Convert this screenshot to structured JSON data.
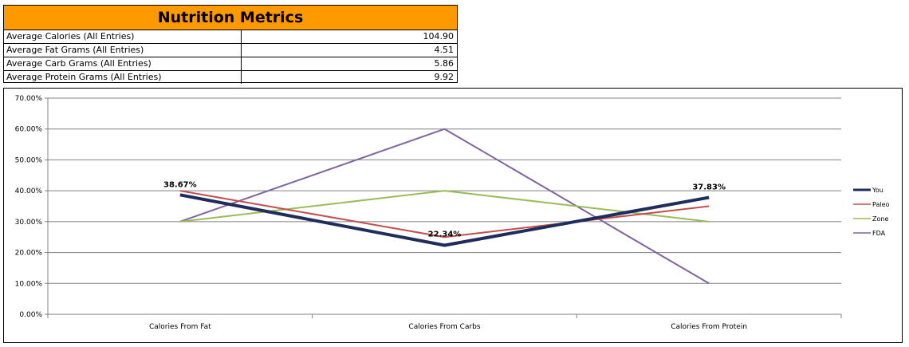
{
  "metrics": {
    "title": "Nutrition Metrics",
    "rows": [
      {
        "label": "Average Calories (All Entries)",
        "value": "104.90"
      },
      {
        "label": "Average Fat Grams (All Entries)",
        "value": "4.51"
      },
      {
        "label": "Average Carb Grams (All Entries)",
        "value": "5.86"
      },
      {
        "label": "Average Protein Grams (All Entries)",
        "value": "9.92"
      }
    ]
  },
  "chart_data": {
    "type": "line",
    "categories": [
      "Calories From Fat",
      "Calories From Carbs",
      "Calories From Protein"
    ],
    "ylim": [
      0,
      70
    ],
    "yticks": [
      "0.00%",
      "10.00%",
      "20.00%",
      "30.00%",
      "40.00%",
      "50.00%",
      "60.00%",
      "70.00%"
    ],
    "grid": true,
    "legend": "right",
    "series": [
      {
        "name": "You",
        "values": [
          38.67,
          22.34,
          37.83
        ],
        "color": "#1f2d5c",
        "labels": [
          "38.67%",
          "22.34%",
          "37.83%"
        ]
      },
      {
        "name": "Paleo",
        "values": [
          40,
          25,
          35
        ],
        "color": "#c0504d"
      },
      {
        "name": "Zone",
        "values": [
          30,
          40,
          30
        ],
        "color": "#9bbb59"
      },
      {
        "name": "FDA",
        "values": [
          30,
          60,
          10
        ],
        "color": "#8064a2"
      }
    ]
  }
}
